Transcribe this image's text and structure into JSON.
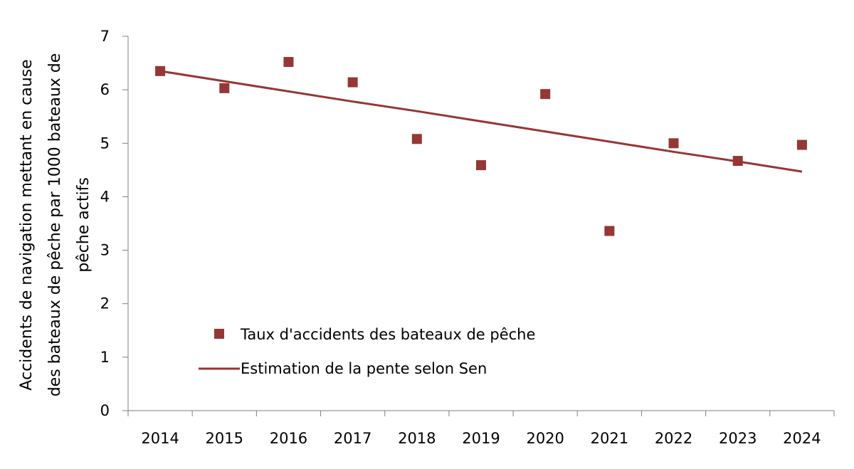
{
  "chart_data": {
    "type": "scatter",
    "categories": [
      "2014",
      "2015",
      "2016",
      "2017",
      "2018",
      "2019",
      "2020",
      "2021",
      "2022",
      "2023",
      "2024"
    ],
    "series": [
      {
        "name": "Taux d'accidents des bateaux de pêche",
        "kind": "scatter",
        "color": "#953735",
        "values": [
          6.35,
          6.03,
          6.52,
          6.14,
          5.08,
          4.59,
          5.92,
          3.36,
          5.0,
          4.67,
          4.97
        ]
      },
      {
        "name": "Estimation de la pente selon Sen",
        "kind": "line",
        "color": "#953735",
        "values": [
          6.35,
          6.16,
          5.97,
          5.78,
          5.6,
          5.41,
          5.22,
          5.03,
          4.84,
          4.66,
          4.47
        ]
      }
    ],
    "ylabel_lines": [
      "Accidents de navigation mettant en cause",
      "des bateaux de pêche par 1000 bateaux de",
      "pêche actifs"
    ],
    "xlabel": "",
    "ylim": [
      0,
      7
    ],
    "yticks": [
      "0",
      "1",
      "2",
      "3",
      "4",
      "5",
      "6",
      "7"
    ],
    "grid": false,
    "legend_position": "lower-left"
  }
}
